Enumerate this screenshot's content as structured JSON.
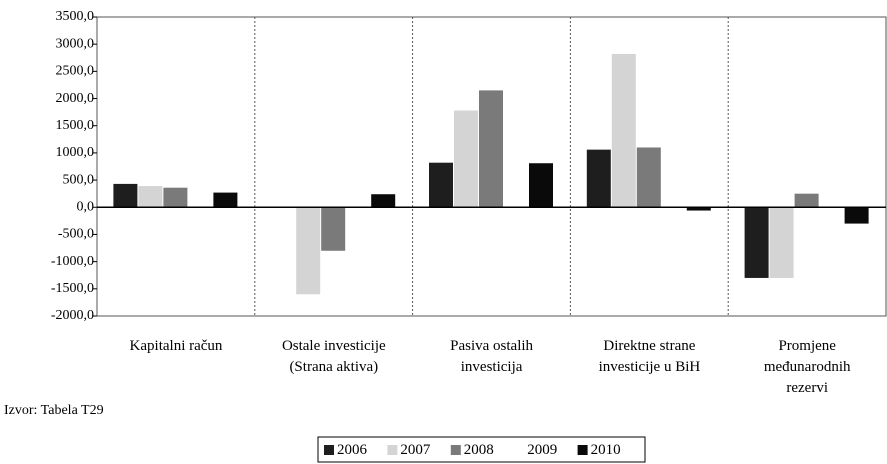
{
  "chart_data": {
    "type": "bar",
    "categories": [
      "Kapitalni račun",
      "Ostale investicije\n(Strana aktiva)",
      "Pasiva ostalih\ninvesticija",
      "Direktne strane\ninvesticije u BiH",
      "Promjene\nmeđunarodnih\nrezervi"
    ],
    "series": [
      {
        "name": "2006",
        "color": "#1e1e1e",
        "values": [
          430,
          -10,
          820,
          1060,
          -1300
        ]
      },
      {
        "name": "2007",
        "color": "#d4d4d4",
        "values": [
          390,
          -1600,
          1780,
          2820,
          -1300
        ]
      },
      {
        "name": "2008",
        "color": "#7a7a7a",
        "values": [
          360,
          -800,
          2150,
          1100,
          250
        ]
      },
      {
        "name": "2009",
        "color": "#ffffff",
        "values": [
          0,
          0,
          0,
          0,
          0
        ]
      },
      {
        "name": "2010",
        "color": "#0a0a0a",
        "values": [
          270,
          240,
          810,
          -60,
          -300
        ]
      }
    ],
    "ylim": [
      -2000,
      3500
    ],
    "yticks": [
      {
        "value": -2000,
        "label": "-2000,0"
      },
      {
        "value": -1500,
        "label": "-1500,0"
      },
      {
        "value": -1000,
        "label": "-1000,0"
      },
      {
        "value": -500,
        "label": "-500,0"
      },
      {
        "value": 0,
        "label": "0,0"
      },
      {
        "value": 500,
        "label": "500,0"
      },
      {
        "value": 1000,
        "label": "1000,0"
      },
      {
        "value": 1500,
        "label": "1500,0"
      },
      {
        "value": 2000,
        "label": "2000,0"
      },
      {
        "value": 2500,
        "label": "2500,0"
      },
      {
        "value": 3000,
        "label": "3000,0"
      },
      {
        "value": 3500,
        "label": "3500,0"
      }
    ],
    "source": "Izvor: Tabela T29",
    "legend": "bottom"
  }
}
